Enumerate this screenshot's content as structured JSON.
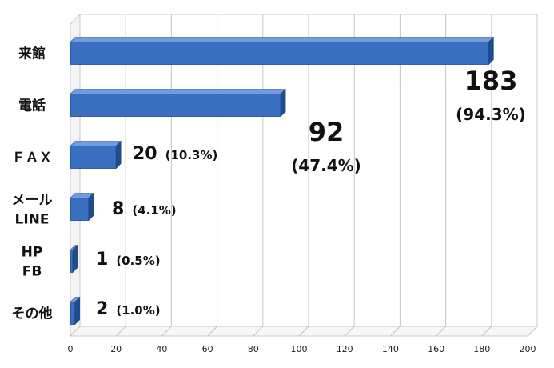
{
  "chart_data": {
    "type": "bar",
    "orientation": "horizontal",
    "style": "3d",
    "categories": [
      "来館",
      "電話",
      "ＦＡＸ",
      "メール\nLINE",
      "HP\nFB",
      "その他"
    ],
    "values": [
      183,
      92,
      20,
      8,
      1,
      2
    ],
    "percents": [
      "(94.3%)",
      "(47.4%)",
      "(10.3%)",
      "(4.1%)",
      "(0.5%)",
      "(1.0%)"
    ],
    "value_labels": [
      "183",
      "92",
      "20",
      "8",
      "1",
      "2"
    ],
    "xlim": [
      0,
      200
    ],
    "xticks": [
      0,
      20,
      40,
      60,
      80,
      100,
      120,
      140,
      160,
      180,
      200
    ],
    "grid": true,
    "bar_color": "#3a6fbf",
    "bar_top_color": "#6f9be0",
    "bar_side_color": "#1f4b8f"
  }
}
